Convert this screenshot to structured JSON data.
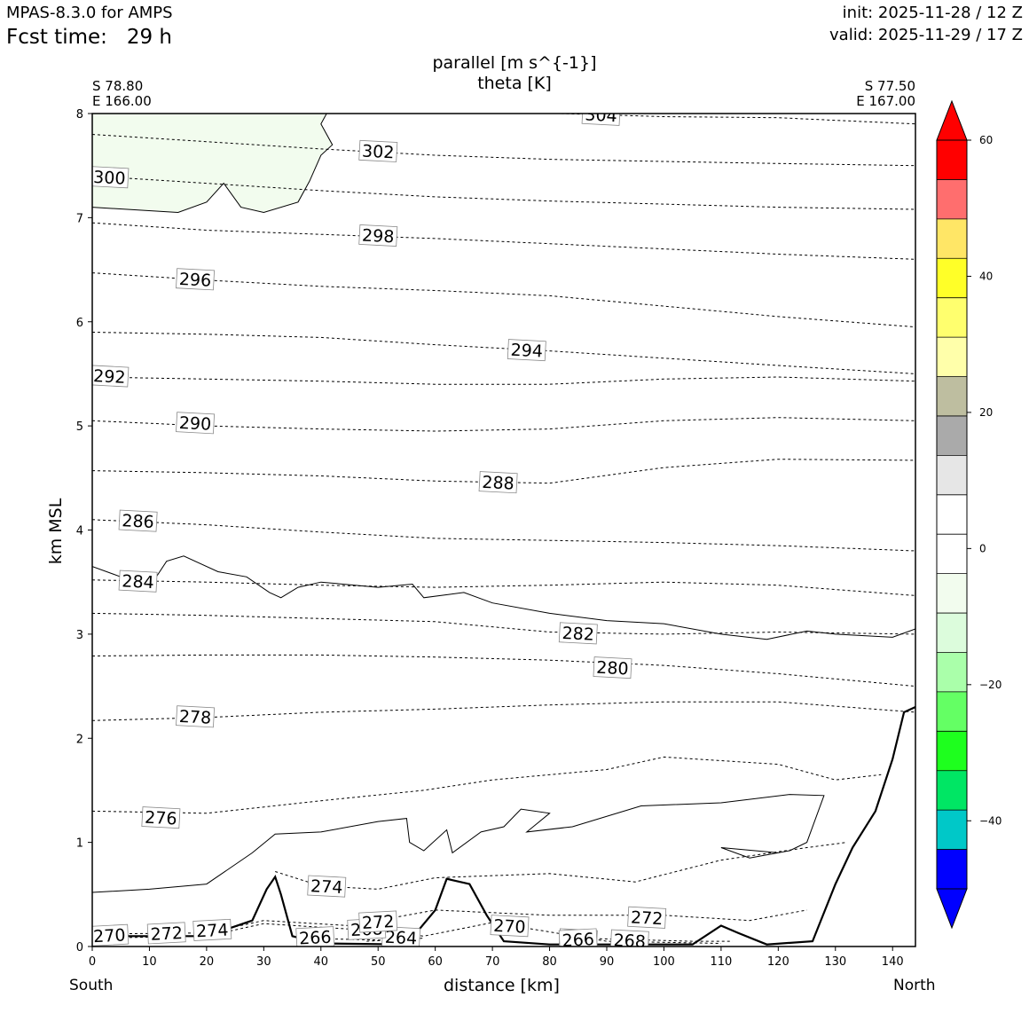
{
  "header": {
    "model": "MPAS-8.3.0 for AMPS",
    "fcst_label": "Fcst time:",
    "fcst_value": "29 h",
    "init": "init: 2025-11-28 / 12 Z",
    "valid": "valid: 2025-11-29 / 17 Z"
  },
  "chart_data": {
    "type": "cross-section contour",
    "title_line1": "parallel [m s^{-1}]",
    "title_line2": "theta [K]",
    "left_endpoint": {
      "lat": "S 78.80",
      "lon": "E 166.00"
    },
    "right_endpoint": {
      "lat": "S 77.50",
      "lon": "E 167.00"
    },
    "xlabel": "distance [km]",
    "ylabel": "km MSL",
    "x_start_label": "South",
    "x_end_label": "North",
    "xlim": [
      0,
      144
    ],
    "ylim": [
      0,
      8
    ],
    "xticks": [
      0,
      10,
      20,
      30,
      40,
      50,
      60,
      70,
      80,
      90,
      100,
      110,
      120,
      130,
      140
    ],
    "yticks": [
      0,
      1,
      2,
      3,
      4,
      5,
      6,
      7,
      8
    ],
    "theta_contours": [
      {
        "value": 304,
        "label": "304",
        "label_at": [
          89,
          7.98
        ],
        "points": [
          [
            82,
            8.0
          ],
          [
            100,
            7.97
          ],
          [
            120,
            7.96
          ],
          [
            144,
            7.9
          ]
        ]
      },
      {
        "value": 302,
        "label": "302",
        "label_at": [
          50,
          7.63
        ],
        "points": [
          [
            0,
            7.8
          ],
          [
            20,
            7.73
          ],
          [
            40,
            7.66
          ],
          [
            60,
            7.6
          ],
          [
            80,
            7.56
          ],
          [
            100,
            7.54
          ],
          [
            120,
            7.52
          ],
          [
            144,
            7.5
          ]
        ]
      },
      {
        "value": 300,
        "label": "300",
        "label_at": [
          3,
          7.38
        ],
        "points": [
          [
            0,
            7.4
          ],
          [
            20,
            7.33
          ],
          [
            40,
            7.26
          ],
          [
            60,
            7.2
          ],
          [
            80,
            7.16
          ],
          [
            100,
            7.13
          ],
          [
            120,
            7.1
          ],
          [
            144,
            7.08
          ]
        ]
      },
      {
        "value": 298,
        "label": "298",
        "label_at": [
          50,
          6.82
        ],
        "points": [
          [
            0,
            6.95
          ],
          [
            20,
            6.88
          ],
          [
            40,
            6.84
          ],
          [
            60,
            6.8
          ],
          [
            80,
            6.75
          ],
          [
            100,
            6.7
          ],
          [
            120,
            6.65
          ],
          [
            144,
            6.6
          ]
        ]
      },
      {
        "value": 296,
        "label": "296",
        "label_at": [
          18,
          6.4
        ],
        "points": [
          [
            0,
            6.47
          ],
          [
            20,
            6.4
          ],
          [
            40,
            6.34
          ],
          [
            60,
            6.3
          ],
          [
            80,
            6.25
          ],
          [
            100,
            6.15
          ],
          [
            120,
            6.05
          ],
          [
            144,
            5.95
          ]
        ]
      },
      {
        "value": 294,
        "label": "294",
        "label_at": [
          76,
          5.72
        ],
        "points": [
          [
            0,
            5.9
          ],
          [
            20,
            5.88
          ],
          [
            40,
            5.85
          ],
          [
            60,
            5.78
          ],
          [
            80,
            5.72
          ],
          [
            100,
            5.65
          ],
          [
            120,
            5.58
          ],
          [
            144,
            5.5
          ]
        ]
      },
      {
        "value": 292,
        "label": "292",
        "label_at": [
          3,
          5.47
        ],
        "points": [
          [
            0,
            5.47
          ],
          [
            20,
            5.45
          ],
          [
            40,
            5.43
          ],
          [
            60,
            5.4
          ],
          [
            80,
            5.4
          ],
          [
            100,
            5.45
          ],
          [
            120,
            5.47
          ],
          [
            144,
            5.43
          ]
        ]
      },
      {
        "value": 290,
        "label": "290",
        "label_at": [
          18,
          5.02
        ],
        "points": [
          [
            0,
            5.05
          ],
          [
            20,
            5.0
          ],
          [
            40,
            4.97
          ],
          [
            60,
            4.95
          ],
          [
            80,
            4.97
          ],
          [
            100,
            5.05
          ],
          [
            120,
            5.08
          ],
          [
            144,
            5.05
          ]
        ]
      },
      {
        "value": 288,
        "label": "288",
        "label_at": [
          71,
          4.45
        ],
        "points": [
          [
            0,
            4.57
          ],
          [
            20,
            4.55
          ],
          [
            40,
            4.52
          ],
          [
            60,
            4.47
          ],
          [
            80,
            4.45
          ],
          [
            100,
            4.6
          ],
          [
            120,
            4.68
          ],
          [
            144,
            4.67
          ]
        ]
      },
      {
        "value": 286,
        "label": "286",
        "label_at": [
          8,
          4.08
        ],
        "points": [
          [
            0,
            4.1
          ],
          [
            20,
            4.05
          ],
          [
            40,
            3.98
          ],
          [
            60,
            3.92
          ],
          [
            80,
            3.9
          ],
          [
            100,
            3.88
          ],
          [
            120,
            3.85
          ],
          [
            144,
            3.8
          ]
        ]
      },
      {
        "value": 284,
        "label": "284",
        "label_at": [
          8,
          3.5
        ],
        "points": [
          [
            0,
            3.52
          ],
          [
            20,
            3.5
          ],
          [
            40,
            3.47
          ],
          [
            60,
            3.45
          ],
          [
            80,
            3.47
          ],
          [
            100,
            3.5
          ],
          [
            120,
            3.47
          ],
          [
            144,
            3.37
          ]
        ]
      },
      {
        "value": 282,
        "label": "282",
        "label_at": [
          85,
          3.0
        ],
        "points": [
          [
            0,
            3.2
          ],
          [
            20,
            3.18
          ],
          [
            40,
            3.15
          ],
          [
            60,
            3.12
          ],
          [
            80,
            3.02
          ],
          [
            100,
            3.0
          ],
          [
            120,
            3.02
          ],
          [
            144,
            3.0
          ]
        ]
      },
      {
        "value": 280,
        "label": "280",
        "label_at": [
          91,
          2.67
        ],
        "points": [
          [
            0,
            2.79
          ],
          [
            20,
            2.8
          ],
          [
            40,
            2.8
          ],
          [
            60,
            2.78
          ],
          [
            80,
            2.75
          ],
          [
            100,
            2.7
          ],
          [
            120,
            2.62
          ],
          [
            144,
            2.5
          ]
        ]
      },
      {
        "value": 278,
        "label": "278",
        "label_at": [
          18,
          2.2
        ],
        "points": [
          [
            0,
            2.17
          ],
          [
            20,
            2.2
          ],
          [
            40,
            2.25
          ],
          [
            60,
            2.28
          ],
          [
            80,
            2.32
          ],
          [
            100,
            2.35
          ],
          [
            120,
            2.35
          ],
          [
            144,
            2.25
          ]
        ]
      },
      {
        "value": 276,
        "label": "276",
        "label_at": [
          12,
          1.23
        ],
        "points": [
          [
            0,
            1.3
          ],
          [
            20,
            1.28
          ],
          [
            40,
            1.4
          ],
          [
            58,
            1.5
          ],
          [
            70,
            1.6
          ],
          [
            90,
            1.7
          ],
          [
            100,
            1.82
          ],
          [
            120,
            1.75
          ],
          [
            130,
            1.6
          ],
          [
            138,
            1.65
          ]
        ]
      },
      {
        "value": 274,
        "label": "274",
        "label_at": [
          41,
          0.57
        ],
        "points": [
          [
            32,
            0.72
          ],
          [
            40,
            0.58
          ],
          [
            50,
            0.55
          ],
          [
            60,
            0.66
          ],
          [
            80,
            0.7
          ],
          [
            95,
            0.62
          ],
          [
            110,
            0.83
          ],
          [
            125,
            0.95
          ],
          [
            132,
            1.0
          ]
        ]
      },
      {
        "value": 272,
        "label": "272",
        "label_at": [
          97,
          0.27
        ],
        "points": [
          [
            0,
            0.12
          ],
          [
            20,
            0.13
          ],
          [
            30,
            0.25
          ],
          [
            45,
            0.2
          ],
          [
            60,
            0.35
          ],
          [
            80,
            0.3
          ],
          [
            100,
            0.3
          ],
          [
            115,
            0.25
          ],
          [
            125,
            0.35
          ]
        ]
      },
      {
        "value": 270,
        "label": "270",
        "label_at": [
          73,
          0.19
        ],
        "points": [
          [
            0,
            0.08
          ],
          [
            20,
            0.1
          ],
          [
            30,
            0.22
          ],
          [
            50,
            0.15
          ],
          [
            58,
            0.1
          ],
          [
            70,
            0.23
          ],
          [
            90,
            0.05
          ],
          [
            110,
            0.03
          ]
        ]
      },
      {
        "value": 268,
        "label": "268",
        "label_at": [
          94,
          0.05
        ],
        "points": [
          [
            85,
            0.08
          ],
          [
            105,
            0.05
          ],
          [
            112,
            0.05
          ]
        ]
      },
      {
        "value": 266,
        "label": "266",
        "label_at": [
          85,
          0.06
        ],
        "points": [
          [
            36,
            0.08
          ],
          [
            52,
            0.06
          ]
        ]
      },
      {
        "value": 264,
        "label": "264",
        "label_at": [
          54,
          0.08
        ],
        "points": [
          [
            48,
            0.05
          ],
          [
            58,
            0.08
          ]
        ]
      }
    ],
    "contour_labels_extra": [
      {
        "label": "270",
        "x": 3,
        "y": 0.1
      },
      {
        "label": "272",
        "x": 13,
        "y": 0.12
      },
      {
        "label": "274",
        "x": 21,
        "y": 0.15
      },
      {
        "label": "266",
        "x": 39,
        "y": 0.08
      },
      {
        "label": "268",
        "x": 48,
        "y": 0.16
      },
      {
        "label": "272",
        "x": 50,
        "y": 0.23
      },
      {
        "label": "266",
        "x": 85,
        "y": 0.06
      }
    ],
    "wind_contours": [
      {
        "level": "zero",
        "points": [
          [
            0,
            7.1
          ],
          [
            15,
            7.05
          ],
          [
            20,
            7.15
          ],
          [
            23,
            7.33
          ],
          [
            26,
            7.1
          ],
          [
            30,
            7.05
          ],
          [
            36,
            7.15
          ],
          [
            38,
            7.35
          ],
          [
            40,
            7.6
          ],
          [
            42,
            7.7
          ],
          [
            40,
            7.9
          ],
          [
            41,
            8.0
          ]
        ]
      },
      {
        "level": "zero",
        "points": [
          [
            0,
            3.65
          ],
          [
            5,
            3.55
          ],
          [
            10,
            3.45
          ],
          [
            13,
            3.7
          ],
          [
            16,
            3.75
          ],
          [
            22,
            3.6
          ],
          [
            27,
            3.55
          ],
          [
            31,
            3.4
          ],
          [
            33,
            3.35
          ],
          [
            36,
            3.45
          ],
          [
            40,
            3.5
          ],
          [
            50,
            3.45
          ],
          [
            56,
            3.48
          ],
          [
            58,
            3.35
          ],
          [
            65,
            3.4
          ],
          [
            70,
            3.3
          ],
          [
            80,
            3.2
          ],
          [
            90,
            3.13
          ],
          [
            100,
            3.1
          ],
          [
            110,
            3.0
          ],
          [
            118,
            2.95
          ],
          [
            125,
            3.03
          ],
          [
            130,
            3.0
          ],
          [
            140,
            2.97
          ],
          [
            144,
            3.05
          ]
        ]
      },
      {
        "level": "zero",
        "points": [
          [
            0,
            0.52
          ],
          [
            10,
            0.55
          ],
          [
            20,
            0.6
          ],
          [
            28,
            0.9
          ],
          [
            32,
            1.08
          ],
          [
            40,
            1.1
          ],
          [
            50,
            1.2
          ],
          [
            55,
            1.23
          ],
          [
            55.5,
            1.0
          ],
          [
            58,
            0.92
          ],
          [
            62,
            1.12
          ],
          [
            63,
            0.9
          ],
          [
            68,
            1.1
          ],
          [
            72,
            1.15
          ],
          [
            75,
            1.32
          ],
          [
            80,
            1.28
          ],
          [
            76,
            1.1
          ],
          [
            84,
            1.15
          ],
          [
            96,
            1.35
          ],
          [
            110,
            1.38
          ],
          [
            122,
            1.46
          ],
          [
            128,
            1.45
          ],
          [
            125,
            1.0
          ],
          [
            122,
            0.92
          ],
          [
            115,
            0.85
          ],
          [
            110,
            0.95
          ],
          [
            120,
            0.9
          ]
        ]
      }
    ],
    "terrain_profile": [
      [
        0,
        0.1
      ],
      [
        20,
        0.1
      ],
      [
        28,
        0.25
      ],
      [
        30.5,
        0.55
      ],
      [
        32,
        0.67
      ],
      [
        33,
        0.5
      ],
      [
        35,
        0.1
      ],
      [
        40,
        0.03
      ],
      [
        55,
        0.02
      ],
      [
        60,
        0.35
      ],
      [
        62,
        0.65
      ],
      [
        66,
        0.6
      ],
      [
        69,
        0.3
      ],
      [
        72,
        0.05
      ],
      [
        80,
        0.02
      ],
      [
        105,
        0.02
      ],
      [
        110,
        0.2
      ],
      [
        113,
        0.13
      ],
      [
        118,
        0.02
      ],
      [
        126,
        0.05
      ],
      [
        130,
        0.6
      ],
      [
        133,
        0.95
      ],
      [
        137,
        1.3
      ],
      [
        140,
        1.8
      ],
      [
        142,
        2.25
      ],
      [
        144,
        2.3
      ]
    ],
    "positive_region_color": "#f2fcee",
    "colorbar": {
      "ticks": [
        60,
        40,
        20,
        0,
        -20,
        -40
      ],
      "tick_labels": [
        "60",
        "40",
        "20",
        "0",
        "−20",
        "−40"
      ],
      "colors_top_to_bottom": [
        "#ff0000",
        "#ff6e6e",
        "#ffe666",
        "#ffff28",
        "#ffff6e",
        "#ffffaa",
        "#bebea0",
        "#aaaaaa",
        "#e6e6e6",
        "#ffffff",
        "#ffffff",
        "#f2fcee",
        "#dcfcdc",
        "#aaffaa",
        "#64ff64",
        "#1eff1e",
        "#00e664",
        "#00c8c8",
        "#0000ff"
      ],
      "upper_extend_color": "#ff0000",
      "lower_extend_color": "#0000ff"
    }
  }
}
